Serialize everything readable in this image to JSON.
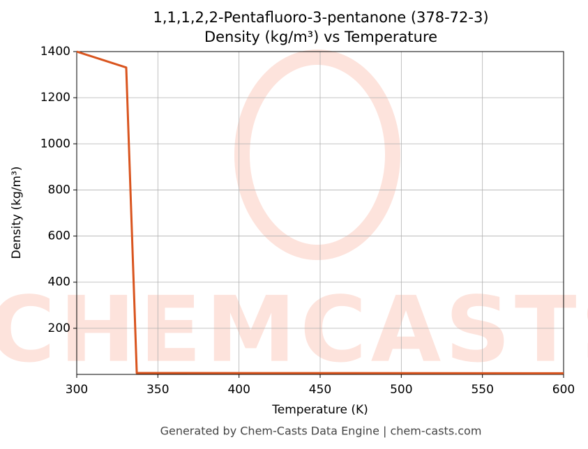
{
  "chart_data": {
    "type": "line",
    "title": "1,1,1,2,2-Pentafluoro-3-pentanone (378-72-3)",
    "subtitle": "Density (kg/m³) vs Temperature",
    "x_label": "Temperature (K)",
    "y_label": "Density (kg/m³)",
    "x": [
      300,
      330.5,
      337,
      600
    ],
    "series": [
      {
        "name": "Density",
        "color": "#d9541e",
        "values": [
          1400,
          1331,
          6,
          5
        ]
      }
    ],
    "xlim": [
      300,
      600
    ],
    "xticks": [
      300,
      350,
      400,
      450,
      500,
      550,
      600
    ],
    "ylim": [
      0,
      1400
    ],
    "yticks": [
      200,
      400,
      600,
      800,
      1000,
      1200,
      1400
    ],
    "grid": true,
    "watermark": "CHEMCASTS",
    "footer": "Generated by Chem-Casts Data Engine | chem-casts.com"
  }
}
